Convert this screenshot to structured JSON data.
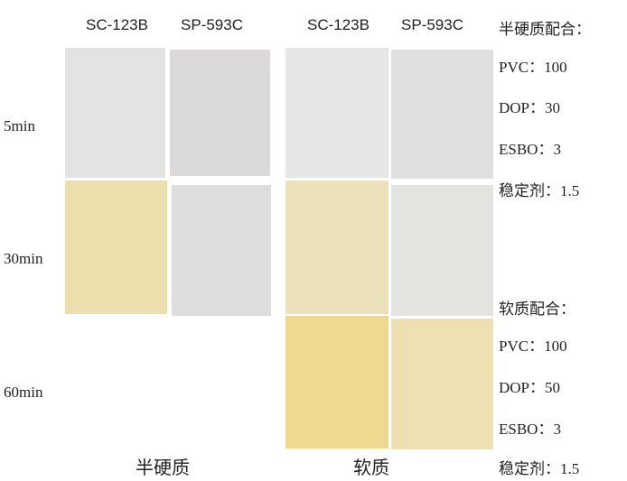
{
  "columns": [
    "SC-123B",
    "SP-593C",
    "SC-123B",
    "SP-593C"
  ],
  "rows": [
    "5min",
    "30min",
    "60min"
  ],
  "groups": [
    "半硬质",
    "软质"
  ],
  "recipes": [
    {
      "title": "半硬质配合：",
      "lines": [
        "PVC：100",
        "DOP：30",
        "ESBO：3",
        "稳定剂：1.5"
      ]
    },
    {
      "title": "软质配合：",
      "lines": [
        "PVC：100",
        "DOP：50",
        "ESBO：3",
        "稳定剂：1.5"
      ]
    }
  ]
}
